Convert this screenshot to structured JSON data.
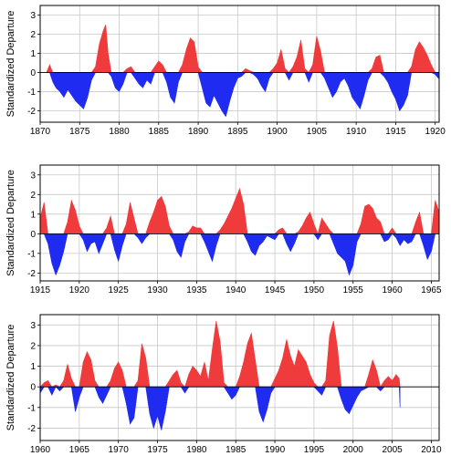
{
  "chart_data": [
    {
      "type": "area",
      "ylabel": "Standardized Departure",
      "xlim": [
        1870,
        1920.5
      ],
      "ylim": [
        -2.6,
        3.5
      ],
      "xticks": [
        1870,
        1875,
        1880,
        1885,
        1890,
        1895,
        1900,
        1905,
        1910,
        1915,
        1920
      ],
      "yticks": [
        -2,
        -1,
        0,
        1,
        2,
        3
      ],
      "grid": true,
      "positive_color": "#ef3b3b",
      "negative_color": "#1f2bf0",
      "x": [
        1870.8,
        1871.2,
        1871.6,
        1872.0,
        1872.5,
        1873.0,
        1873.5,
        1874.0,
        1874.5,
        1875.0,
        1875.5,
        1876.0,
        1876.5,
        1877.0,
        1877.5,
        1878.0,
        1878.3,
        1878.6,
        1879.0,
        1879.5,
        1880.0,
        1880.5,
        1881.0,
        1881.5,
        1882.0,
        1882.5,
        1883.0,
        1883.5,
        1884.0,
        1884.5,
        1885.0,
        1885.5,
        1886.0,
        1886.5,
        1887.0,
        1887.5,
        1888.0,
        1888.5,
        1889.0,
        1889.5,
        1890.0,
        1890.5,
        1891.0,
        1891.5,
        1892.0,
        1892.5,
        1893.0,
        1893.5,
        1894.0,
        1894.5,
        1895.0,
        1895.5,
        1896.0,
        1896.5,
        1897.0,
        1897.5,
        1898.0,
        1898.5,
        1899.0,
        1899.5,
        1900.0,
        1900.5,
        1901.0,
        1901.5,
        1902.0,
        1902.5,
        1903.0,
        1903.5,
        1904.0,
        1904.5,
        1905.0,
        1905.5,
        1906.0,
        1906.5,
        1907.0,
        1907.5,
        1908.0,
        1908.5,
        1909.0,
        1909.5,
        1910.0,
        1910.5,
        1911.0,
        1911.5,
        1912.0,
        1912.5,
        1913.0,
        1913.5,
        1914.0,
        1914.5,
        1915.0,
        1915.5,
        1916.0,
        1916.5,
        1917.0,
        1917.5,
        1918.0,
        1918.5,
        1919.0,
        1919.5,
        1920.0,
        1920.4
      ],
      "y": [
        0.0,
        0.4,
        -0.5,
        -0.8,
        -1.0,
        -1.3,
        -0.9,
        -1.2,
        -1.5,
        -1.7,
        -1.9,
        -1.3,
        -0.4,
        0.3,
        1.5,
        2.2,
        2.5,
        1.0,
        -0.2,
        -0.8,
        -1.0,
        -0.6,
        0.2,
        0.3,
        -0.3,
        -0.6,
        -0.8,
        -0.4,
        -0.6,
        0.3,
        0.6,
        0.4,
        -0.5,
        -1.3,
        -1.6,
        -0.5,
        0.4,
        1.2,
        1.8,
        1.6,
        0.3,
        -0.8,
        -1.6,
        -1.8,
        -1.2,
        -1.6,
        -2.0,
        -2.3,
        -1.5,
        -0.8,
        -0.3,
        -0.2,
        0.2,
        0.1,
        -0.1,
        -0.3,
        -0.7,
        -1.0,
        -0.3,
        0.2,
        0.5,
        1.2,
        0.2,
        -0.4,
        0.3,
        0.8,
        1.7,
        0.2,
        -0.5,
        0.4,
        1.9,
        1.1,
        -0.3,
        -0.8,
        -1.3,
        -1.0,
        -0.5,
        -0.3,
        -0.7,
        -1.3,
        -1.6,
        -1.9,
        -1.2,
        -0.4,
        0.2,
        0.8,
        0.9,
        -0.2,
        -0.5,
        -1.0,
        -1.4,
        -2.0,
        -1.7,
        -1.2,
        0.3,
        1.2,
        1.6,
        1.3,
        0.9,
        0.4,
        -0.1,
        -0.3
      ]
    },
    {
      "type": "area",
      "ylabel": "Standardized Departure",
      "xlim": [
        1915,
        1966
      ],
      "ylim": [
        -2.4,
        3.5
      ],
      "xticks": [
        1915,
        1920,
        1925,
        1930,
        1935,
        1940,
        1945,
        1950,
        1955,
        1960,
        1965
      ],
      "yticks": [
        -2,
        -1,
        0,
        1,
        2,
        3
      ],
      "grid": true,
      "positive_color": "#ef3b3b",
      "negative_color": "#1f2bf0",
      "x": [
        1915.0,
        1915.5,
        1916.0,
        1916.5,
        1917.0,
        1917.5,
        1918.0,
        1918.5,
        1919.0,
        1919.5,
        1920.0,
        1920.5,
        1921.0,
        1921.5,
        1922.0,
        1922.5,
        1923.0,
        1923.5,
        1924.0,
        1924.5,
        1925.0,
        1925.5,
        1926.0,
        1926.5,
        1927.0,
        1927.5,
        1928.0,
        1928.5,
        1929.0,
        1929.5,
        1930.0,
        1930.5,
        1931.0,
        1931.5,
        1932.0,
        1932.5,
        1933.0,
        1933.5,
        1934.0,
        1934.5,
        1935.0,
        1935.5,
        1936.0,
        1936.5,
        1937.0,
        1937.5,
        1938.0,
        1938.5,
        1939.0,
        1939.5,
        1940.0,
        1940.5,
        1941.0,
        1941.5,
        1942.0,
        1942.5,
        1943.0,
        1943.5,
        1944.0,
        1944.5,
        1945.0,
        1945.5,
        1946.0,
        1946.5,
        1947.0,
        1947.5,
        1948.0,
        1948.5,
        1949.0,
        1949.5,
        1950.0,
        1950.5,
        1951.0,
        1951.5,
        1952.0,
        1952.5,
        1953.0,
        1953.5,
        1954.0,
        1954.5,
        1955.0,
        1955.5,
        1956.0,
        1956.5,
        1957.0,
        1957.5,
        1958.0,
        1958.5,
        1959.0,
        1959.5,
        1960.0,
        1960.5,
        1961.0,
        1961.5,
        1962.0,
        1962.5,
        1963.0,
        1963.5,
        1964.0,
        1964.5,
        1965.0,
        1965.5,
        1966.0
      ],
      "y": [
        0.8,
        1.6,
        -0.5,
        -1.5,
        -2.1,
        -1.6,
        -0.9,
        0.6,
        1.7,
        1.2,
        0.4,
        -0.3,
        -0.9,
        -0.5,
        -0.4,
        -1.0,
        -0.5,
        0.3,
        0.9,
        -0.8,
        -1.4,
        -0.6,
        0.5,
        1.6,
        0.8,
        -0.2,
        -0.5,
        -0.2,
        0.6,
        1.1,
        1.7,
        1.9,
        1.4,
        0.4,
        -0.3,
        -0.9,
        -1.2,
        -0.4,
        0.1,
        0.4,
        0.3,
        0.3,
        -0.4,
        -0.9,
        -1.4,
        -0.6,
        0.2,
        0.5,
        0.9,
        1.3,
        1.8,
        2.3,
        1.5,
        -0.4,
        -0.9,
        -1.1,
        -0.6,
        -0.4,
        -0.1,
        -0.2,
        -0.3,
        0.2,
        0.3,
        -0.5,
        -0.9,
        -0.5,
        0.1,
        0.4,
        0.8,
        1.1,
        0.5,
        -0.3,
        0.8,
        0.5,
        0.2,
        -0.5,
        -1.0,
        -1.2,
        -1.4,
        -2.1,
        -1.6,
        -0.4,
        0.5,
        1.4,
        1.5,
        1.3,
        0.8,
        0.6,
        -0.4,
        -0.3,
        0.3,
        -0.2,
        -0.6,
        -0.3,
        -0.5,
        -0.4,
        0.6,
        1.1,
        -0.6,
        -1.3,
        -0.9,
        1.7,
        1.1
      ]
    },
    {
      "type": "area",
      "ylabel": "Standardized Departure",
      "xlim": [
        1960,
        2011
      ],
      "ylim": [
        -2.6,
        3.5
      ],
      "xticks": [
        1960,
        1965,
        1970,
        1975,
        1980,
        1985,
        1990,
        1995,
        2000,
        2005,
        2010
      ],
      "yticks": [
        -2,
        -1,
        0,
        1,
        2,
        3
      ],
      "grid": true,
      "positive_color": "#ef3b3b",
      "negative_color": "#1f2bf0",
      "x": [
        1960.0,
        1960.5,
        1961.0,
        1961.5,
        1962.0,
        1962.5,
        1963.0,
        1963.5,
        1964.0,
        1964.5,
        1965.0,
        1965.5,
        1966.0,
        1966.5,
        1967.0,
        1967.5,
        1968.0,
        1968.5,
        1969.0,
        1969.5,
        1970.0,
        1970.5,
        1971.0,
        1971.5,
        1972.0,
        1972.5,
        1973.0,
        1973.5,
        1974.0,
        1974.5,
        1975.0,
        1975.5,
        1976.0,
        1976.5,
        1977.0,
        1977.5,
        1978.0,
        1978.5,
        1979.0,
        1979.5,
        1980.0,
        1980.5,
        1981.0,
        1981.5,
        1982.0,
        1982.5,
        1983.0,
        1983.5,
        1984.0,
        1984.5,
        1985.0,
        1985.5,
        1986.0,
        1986.5,
        1987.0,
        1987.5,
        1988.0,
        1988.5,
        1989.0,
        1989.5,
        1990.0,
        1990.5,
        1991.0,
        1991.5,
        1992.0,
        1992.5,
        1993.0,
        1993.5,
        1994.0,
        1994.5,
        1995.0,
        1995.5,
        1996.0,
        1996.5,
        1997.0,
        1997.5,
        1998.0,
        1998.5,
        1999.0,
        1999.5,
        2000.0,
        2000.5,
        2001.0,
        2001.5,
        2002.0,
        2002.5,
        2003.0,
        2003.5,
        2004.0,
        2004.5,
        2005.0,
        2005.5,
        2005.9,
        2006.0
      ],
      "y": [
        -0.3,
        0.2,
        0.3,
        -0.4,
        0.1,
        -0.2,
        0.3,
        1.1,
        0.4,
        -1.2,
        -0.5,
        1.2,
        1.7,
        1.3,
        0.3,
        -0.5,
        -0.8,
        -0.4,
        0.3,
        0.9,
        1.2,
        0.8,
        -0.8,
        -1.8,
        -1.5,
        0.3,
        2.1,
        1.4,
        -1.3,
        -2.0,
        -1.4,
        -2.1,
        -1.2,
        0.3,
        0.6,
        0.8,
        0.2,
        -0.3,
        0.6,
        1.0,
        0.8,
        0.5,
        1.2,
        0.3,
        1.8,
        3.2,
        2.2,
        0.2,
        -0.3,
        -0.6,
        -0.4,
        0.5,
        1.2,
        2.1,
        2.6,
        1.3,
        -1.2,
        -1.7,
        -1.1,
        -0.3,
        0.4,
        0.8,
        1.4,
        2.3,
        1.5,
        1.0,
        1.8,
        1.5,
        1.2,
        0.6,
        0.2,
        -0.2,
        -0.4,
        0.3,
        2.5,
        3.2,
        1.9,
        -0.6,
        -1.1,
        -1.3,
        -0.9,
        -0.5,
        -0.2,
        -0.1,
        0.6,
        1.3,
        0.8,
        -0.2,
        0.3,
        0.5,
        0.3,
        0.6,
        0.4,
        -1.0
      ]
    }
  ]
}
